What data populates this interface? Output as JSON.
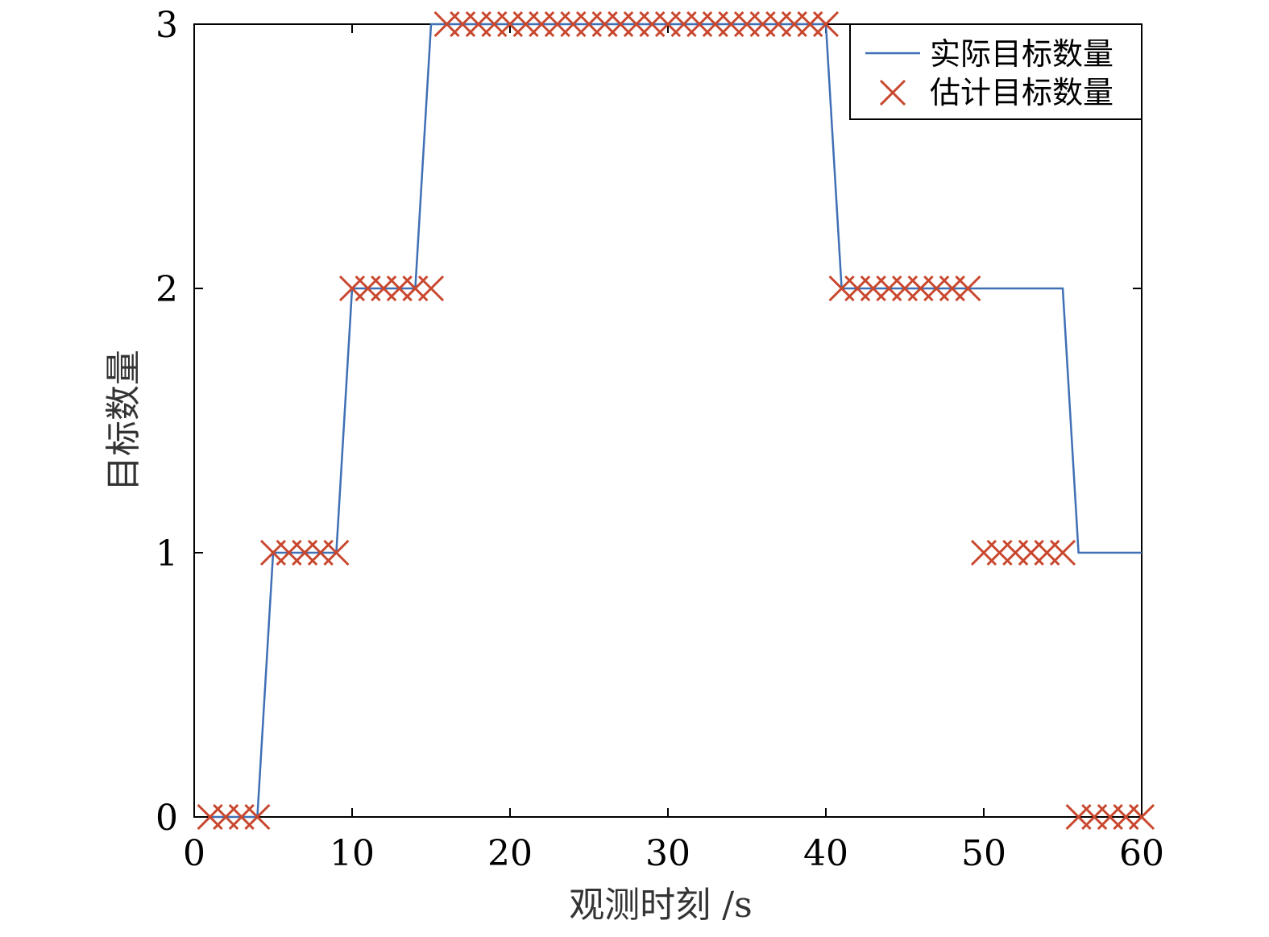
{
  "chart_data": {
    "type": "line",
    "xlabel": "观测时刻 /s",
    "ylabel": "目标数量",
    "xlim": [
      0,
      60
    ],
    "ylim": [
      0,
      3
    ],
    "xticks": [
      0,
      10,
      20,
      30,
      40,
      50,
      60
    ],
    "yticks": [
      0,
      1,
      2,
      3
    ],
    "grid": false,
    "legend_position": "top-right",
    "series": [
      {
        "name": "实际目标数量",
        "kind": "line",
        "color": "#3f6fb5",
        "x": [
          1,
          4,
          5,
          9,
          10,
          14,
          15,
          40,
          41,
          55,
          56,
          60
        ],
        "y": [
          0,
          0,
          1,
          1,
          2,
          2,
          3,
          3,
          2,
          2,
          1,
          1
        ]
      },
      {
        "name": "估计目标数量",
        "kind": "marker-x",
        "color": "#c8472e",
        "x": [
          1,
          2,
          3,
          4,
          5,
          6,
          7,
          8,
          9,
          10,
          11,
          12,
          13,
          14,
          15,
          16,
          17,
          18,
          19,
          20,
          21,
          22,
          23,
          24,
          25,
          26,
          27,
          28,
          29,
          30,
          31,
          32,
          33,
          34,
          35,
          36,
          37,
          38,
          39,
          40,
          41,
          42,
          43,
          44,
          45,
          46,
          47,
          48,
          49,
          50,
          51,
          52,
          53,
          54,
          55,
          56,
          57,
          58,
          59,
          60
        ],
        "y": [
          0,
          0,
          0,
          0,
          1,
          1,
          1,
          1,
          1,
          2,
          2,
          2,
          2,
          2,
          2,
          3,
          3,
          3,
          3,
          3,
          3,
          3,
          3,
          3,
          3,
          3,
          3,
          3,
          3,
          3,
          3,
          3,
          3,
          3,
          3,
          3,
          3,
          3,
          3,
          3,
          2,
          2,
          2,
          2,
          2,
          2,
          2,
          2,
          2,
          1,
          1,
          1,
          1,
          1,
          1,
          0,
          0,
          0,
          0,
          0
        ]
      }
    ]
  }
}
